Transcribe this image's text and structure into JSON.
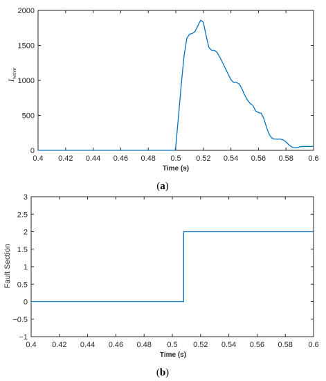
{
  "chart_data": [
    {
      "type": "line",
      "caption": {
        "open": "(",
        "letter": "a",
        "close": ")"
      },
      "ylabel": {
        "main": "I",
        "sub": "wave"
      },
      "xlabel": "Time (s)",
      "xlim": [
        0.4,
        0.6
      ],
      "ylim": [
        0,
        2000
      ],
      "xticks": [
        0.4,
        0.42,
        0.44,
        0.46,
        0.48,
        0.5,
        0.52,
        0.54,
        0.56,
        0.58,
        0.6
      ],
      "xtick_labels": [
        "0.4",
        "0.42",
        "0.44",
        "0.46",
        "0.48",
        "0.5",
        "0.52",
        "0.54",
        "0.56",
        "0.58",
        "0.6"
      ],
      "yticks": [
        0,
        500,
        1000,
        1500,
        2000
      ],
      "ytick_labels": [
        "0",
        "500",
        "1000",
        "1500",
        "2000"
      ],
      "grid": false,
      "color": "#0072BD",
      "series": [
        {
          "x": [
            0.4,
            0.45,
            0.49,
            0.4995,
            0.5,
            0.502,
            0.504,
            0.506,
            0.508,
            0.51,
            0.512,
            0.514,
            0.516,
            0.518,
            0.52,
            0.522,
            0.524,
            0.526,
            0.528,
            0.53,
            0.532,
            0.534,
            0.536,
            0.538,
            0.54,
            0.542,
            0.544,
            0.546,
            0.548,
            0.55,
            0.552,
            0.554,
            0.556,
            0.558,
            0.56,
            0.562,
            0.564,
            0.566,
            0.568,
            0.57,
            0.572,
            0.574,
            0.576,
            0.578,
            0.58,
            0.582,
            0.584,
            0.586,
            0.588,
            0.59,
            0.592,
            0.594,
            0.596,
            0.598,
            0.6
          ],
          "y": [
            0,
            0,
            0,
            0,
            60,
            500,
            950,
            1350,
            1600,
            1660,
            1670,
            1700,
            1780,
            1860,
            1830,
            1640,
            1470,
            1430,
            1430,
            1400,
            1330,
            1250,
            1170,
            1090,
            1010,
            970,
            970,
            950,
            880,
            790,
            720,
            670,
            640,
            560,
            540,
            530,
            450,
            320,
            220,
            170,
            160,
            160,
            160,
            150,
            120,
            80,
            50,
            35,
            40,
            50,
            55,
            55,
            55,
            55,
            58
          ]
        }
      ]
    },
    {
      "type": "line",
      "caption": {
        "open": "(",
        "letter": "b",
        "close": ")"
      },
      "ylabel": "Fault Section",
      "xlabel": "Time (s)",
      "xlim": [
        0.4,
        0.6
      ],
      "ylim": [
        -1,
        3
      ],
      "xticks": [
        0.4,
        0.42,
        0.44,
        0.46,
        0.48,
        0.5,
        0.52,
        0.54,
        0.56,
        0.58,
        0.6
      ],
      "xtick_labels": [
        "0.4",
        "0.42",
        "0.44",
        "0.46",
        "0.48",
        "0.5",
        "0.52",
        "0.54",
        "0.56",
        "0.58",
        "0.6"
      ],
      "yticks": [
        -1,
        -0.5,
        0,
        0.5,
        1,
        1.5,
        2,
        2.5,
        3
      ],
      "ytick_labels": [
        "−1",
        "−0.5",
        "0",
        "0.5",
        "1",
        "1.5",
        "2",
        "2.5",
        "3"
      ],
      "grid": false,
      "color": "#0072BD",
      "series": [
        {
          "x": [
            0.4,
            0.508,
            0.508,
            0.6
          ],
          "y": [
            0,
            0,
            2,
            2
          ]
        }
      ]
    }
  ]
}
